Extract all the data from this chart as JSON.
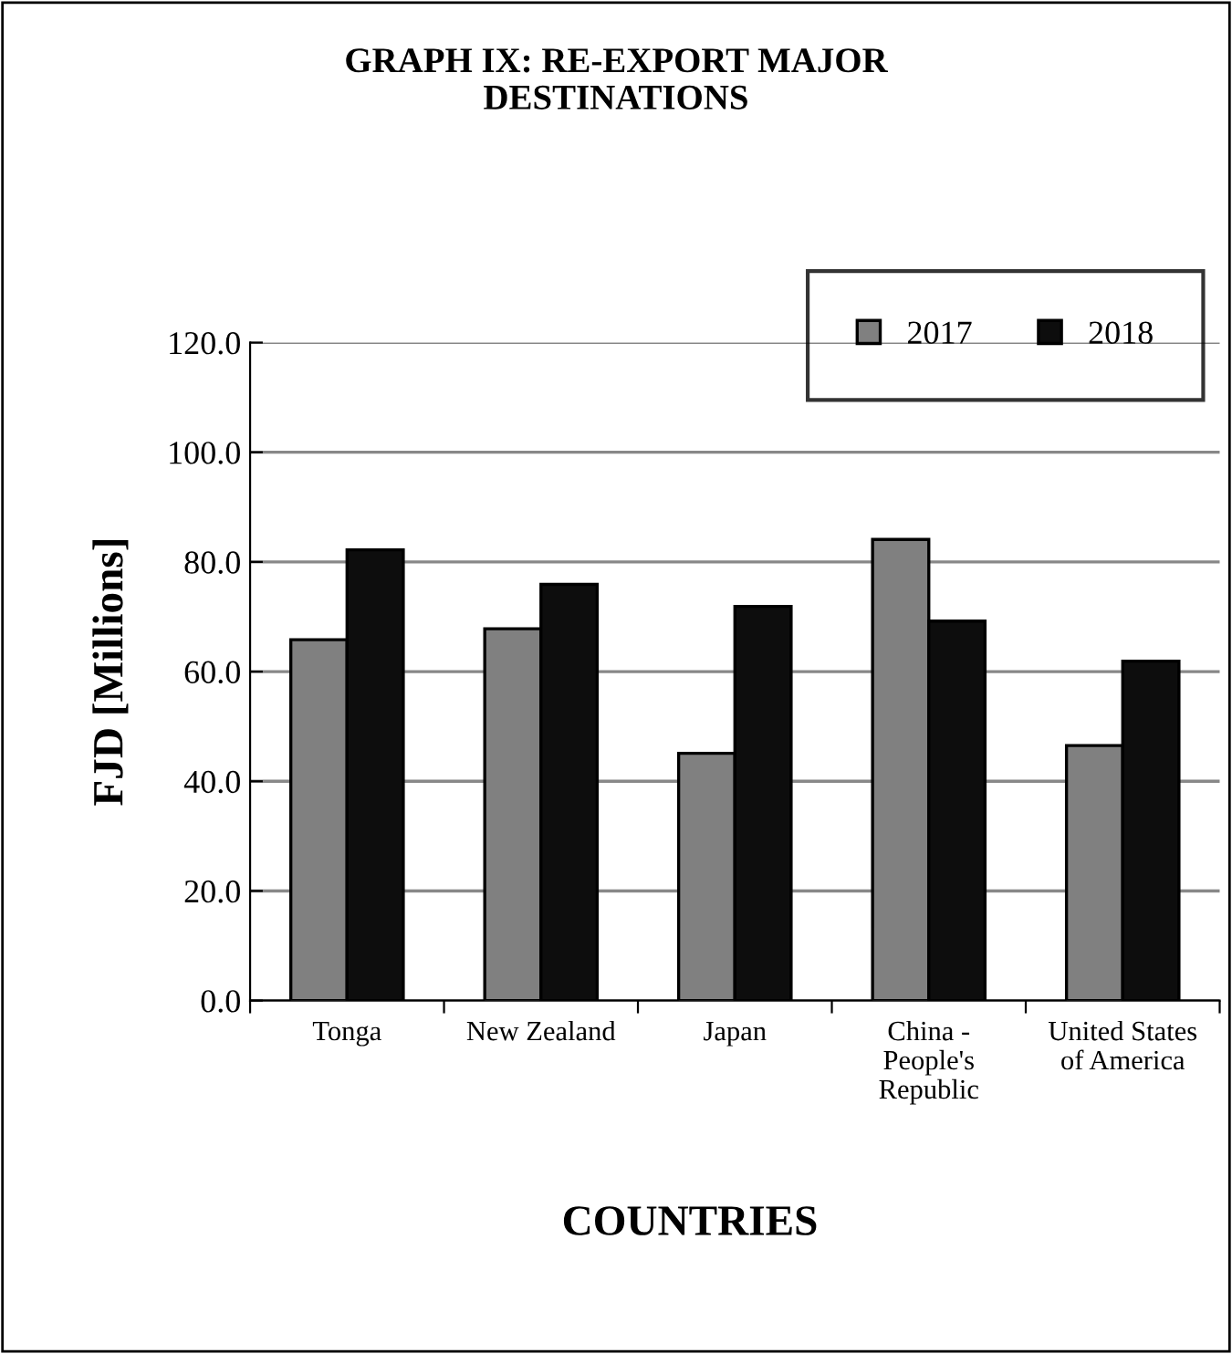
{
  "chart_data": {
    "type": "bar",
    "title": "GRAPH IX: RE-EXPORT MAJOR\nDESTINATIONS",
    "xlabel": "COUNTRIES",
    "ylabel": "FJD [Millions]",
    "categories": [
      "Tonga",
      "New Zealand",
      "Japan",
      "China -\nPeople's\nRepublic",
      "United States\nof America"
    ],
    "series": [
      {
        "name": "2017",
        "color": "#808080",
        "values": [
          65.8,
          67.8,
          45.1,
          84.1,
          46.5
        ]
      },
      {
        "name": "2018",
        "color": "#0d0d0d",
        "values": [
          82.2,
          75.9,
          71.9,
          69.2,
          61.9
        ]
      }
    ],
    "ylim": [
      0,
      120
    ],
    "yticks": [
      {
        "value": 0,
        "label": "0.0"
      },
      {
        "value": 20,
        "label": "20.0"
      },
      {
        "value": 40,
        "label": "40.0"
      },
      {
        "value": 60,
        "label": "60.0"
      },
      {
        "value": 80,
        "label": "80.0"
      },
      {
        "value": 100,
        "label": "100.0"
      },
      {
        "value": 120,
        "label": "120.0"
      }
    ],
    "grid": "y",
    "legend": "top right"
  }
}
